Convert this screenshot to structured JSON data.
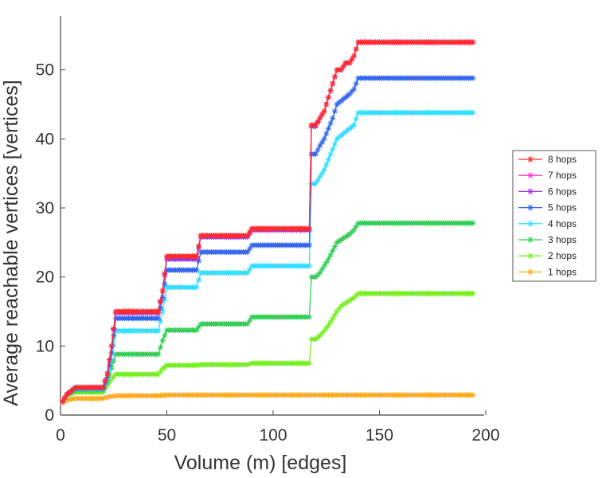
{
  "chart_data": {
    "type": "line",
    "xlabel": "Volume (m) [edges]",
    "ylabel": "Average reachable vertices [vertices]",
    "xlim": [
      0,
      200
    ],
    "ylim": [
      0,
      57
    ],
    "xticks": [
      0,
      50,
      100,
      150,
      200
    ],
    "yticks": [
      0,
      10,
      20,
      30,
      40,
      50
    ],
    "grid": false,
    "legend_position": "outside-right",
    "marker": "asterisk",
    "series": [
      {
        "name": "8 hops",
        "color": "#ff2a2a",
        "x": [
          1,
          3,
          7,
          20,
          22,
          24,
          26,
          46,
          48,
          50,
          64,
          66,
          88,
          90,
          117,
          118,
          120,
          122,
          124,
          126,
          128,
          130,
          132,
          134,
          136,
          138,
          140,
          194
        ],
        "y": [
          2,
          3,
          4,
          4,
          6,
          10,
          15,
          15,
          18,
          23,
          23,
          26,
          26,
          27,
          27,
          42,
          42,
          43,
          44,
          46,
          48,
          50,
          50,
          51,
          51,
          52,
          54,
          54
        ]
      },
      {
        "name": "7 hops",
        "color": "#ff33cc",
        "x": [
          1,
          3,
          7,
          20,
          22,
          24,
          26,
          46,
          48,
          50,
          64,
          66,
          88,
          90,
          117,
          118,
          120,
          122,
          124,
          126,
          128,
          130,
          132,
          134,
          136,
          138,
          140,
          194
        ],
        "y": [
          2,
          3,
          4,
          4,
          6,
          10,
          15,
          15,
          18,
          23,
          23,
          26,
          26,
          27,
          27,
          42,
          42,
          43,
          44,
          46,
          48,
          50,
          50,
          51,
          51,
          52,
          54,
          54
        ]
      },
      {
        "name": "6 hops",
        "color": "#9933dd",
        "x": [
          1,
          3,
          7,
          20,
          22,
          24,
          26,
          46,
          48,
          50,
          64,
          66,
          88,
          90,
          117,
          118,
          120,
          122,
          124,
          126,
          128,
          130,
          132,
          134,
          136,
          138,
          140,
          194
        ],
        "y": [
          2,
          3,
          4,
          4,
          6,
          10,
          14.8,
          14.8,
          18,
          22.6,
          22.6,
          25.8,
          25.8,
          26.8,
          26.8,
          41.8,
          41.8,
          43,
          44,
          46,
          48,
          50,
          50,
          51,
          51,
          52,
          54,
          54
        ]
      },
      {
        "name": "5 hops",
        "color": "#3366ee",
        "x": [
          1,
          3,
          7,
          20,
          22,
          24,
          26,
          46,
          48,
          50,
          64,
          66,
          88,
          90,
          117,
          118,
          120,
          122,
          124,
          126,
          128,
          130,
          132,
          134,
          136,
          138,
          140,
          194
        ],
        "y": [
          2,
          3,
          3.9,
          3.9,
          5.5,
          9,
          14,
          14,
          17,
          21,
          21,
          23.6,
          23.6,
          24.6,
          24.6,
          37.8,
          37.8,
          39,
          40,
          41.5,
          43,
          45,
          45.5,
          46,
          46.5,
          47.2,
          48.8,
          48.8
        ]
      },
      {
        "name": "4 hops",
        "color": "#33ddff",
        "x": [
          1,
          3,
          7,
          20,
          22,
          24,
          26,
          46,
          48,
          50,
          64,
          66,
          88,
          90,
          117,
          118,
          120,
          122,
          124,
          126,
          128,
          130,
          132,
          134,
          136,
          138,
          140,
          194
        ],
        "y": [
          2,
          3,
          3.8,
          3.8,
          5.2,
          8,
          12.2,
          12.2,
          15,
          18.5,
          18.5,
          20.6,
          20.6,
          21.6,
          21.6,
          33.5,
          33.5,
          34.5,
          35.5,
          37,
          38.5,
          40,
          40.5,
          41,
          41.5,
          42,
          43.8,
          43.8
        ]
      },
      {
        "name": "3 hops",
        "color": "#33cc55",
        "x": [
          1,
          3,
          7,
          20,
          22,
          24,
          26,
          46,
          48,
          50,
          64,
          66,
          88,
          90,
          117,
          118,
          120,
          122,
          124,
          126,
          128,
          130,
          132,
          134,
          136,
          138,
          140,
          194
        ],
        "y": [
          2,
          3,
          3.6,
          3.6,
          4.8,
          6.8,
          8.8,
          8.8,
          10.8,
          12.3,
          12.3,
          13.2,
          13.2,
          14.2,
          14.2,
          20,
          20,
          20.6,
          21.6,
          22.6,
          23.8,
          25,
          25.4,
          25.8,
          26.2,
          26.8,
          27.8,
          27.8
        ]
      },
      {
        "name": "2 hops",
        "color": "#77ee22",
        "x": [
          1,
          3,
          7,
          20,
          22,
          24,
          26,
          46,
          48,
          50,
          64,
          66,
          88,
          90,
          117,
          118,
          120,
          122,
          124,
          126,
          128,
          130,
          132,
          134,
          136,
          138,
          140,
          194
        ],
        "y": [
          2,
          2.8,
          3.3,
          3.3,
          4.3,
          5.2,
          5.9,
          5.9,
          6.7,
          7.2,
          7.2,
          7.3,
          7.3,
          7.5,
          7.5,
          11,
          11,
          11.5,
          12.2,
          13,
          14,
          15,
          15.8,
          16.2,
          16.6,
          17,
          17.6,
          17.6
        ]
      },
      {
        "name": "1 hops",
        "color": "#ffaa22",
        "x": [
          1,
          3,
          7,
          20,
          22,
          24,
          26,
          46,
          48,
          50,
          64,
          66,
          88,
          90,
          117,
          118,
          120,
          122,
          124,
          126,
          128,
          130,
          132,
          134,
          136,
          138,
          140,
          194
        ],
        "y": [
          1.8,
          2.2,
          2.4,
          2.4,
          2.6,
          2.7,
          2.8,
          2.8,
          2.85,
          2.9,
          2.9,
          2.9,
          2.9,
          2.9,
          2.9,
          2.9,
          2.9,
          2.9,
          2.9,
          2.9,
          2.9,
          2.9,
          2.9,
          2.9,
          2.9,
          2.9,
          2.9,
          2.9
        ]
      }
    ]
  }
}
